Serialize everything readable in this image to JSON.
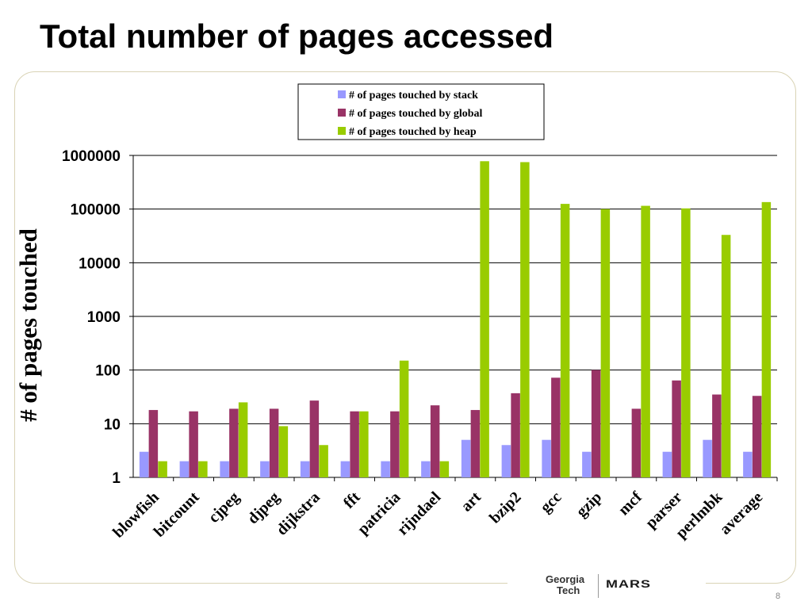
{
  "slide": {
    "title": "Total number of pages accessed",
    "page_number": "8",
    "logo_line1": "Georgia",
    "logo_line2": "Tech",
    "logo_mars": "MARS"
  },
  "colors": {
    "stack": "#9999ff",
    "global": "#993366",
    "heap": "#99cc00"
  },
  "chart_data": {
    "type": "bar",
    "title": "",
    "xlabel": "",
    "ylabel": "# of pages touched",
    "yscale": "log",
    "ylim": [
      1,
      1000000
    ],
    "yticks": [
      "1",
      "10",
      "100",
      "1000",
      "10000",
      "100000",
      "1000000"
    ],
    "grid": true,
    "legend_position": "top-center",
    "categories": [
      "blowfish",
      "bitcount",
      "cjpeg",
      "djpeg",
      "dijkstra",
      "fft",
      "patricia",
      "rijndael",
      "art",
      "bzip2",
      "gcc",
      "gzip",
      "mcf",
      "parser",
      "perlmbk",
      "average"
    ],
    "series": [
      {
        "name": "# of pages touched by stack",
        "values": [
          3,
          2,
          2,
          2,
          2,
          2,
          2,
          2,
          5,
          4,
          5,
          3,
          1,
          3,
          5,
          3
        ]
      },
      {
        "name": "# of pages touched by global",
        "values": [
          18,
          17,
          19,
          19,
          27,
          17,
          17,
          22,
          18,
          37,
          72,
          100,
          19,
          64,
          35,
          33
        ]
      },
      {
        "name": "# of pages touched by heap",
        "values": [
          2,
          2,
          25,
          9,
          4,
          17,
          150,
          2,
          780000,
          750000,
          125000,
          100000,
          115000,
          103000,
          33000,
          135000
        ]
      }
    ]
  }
}
